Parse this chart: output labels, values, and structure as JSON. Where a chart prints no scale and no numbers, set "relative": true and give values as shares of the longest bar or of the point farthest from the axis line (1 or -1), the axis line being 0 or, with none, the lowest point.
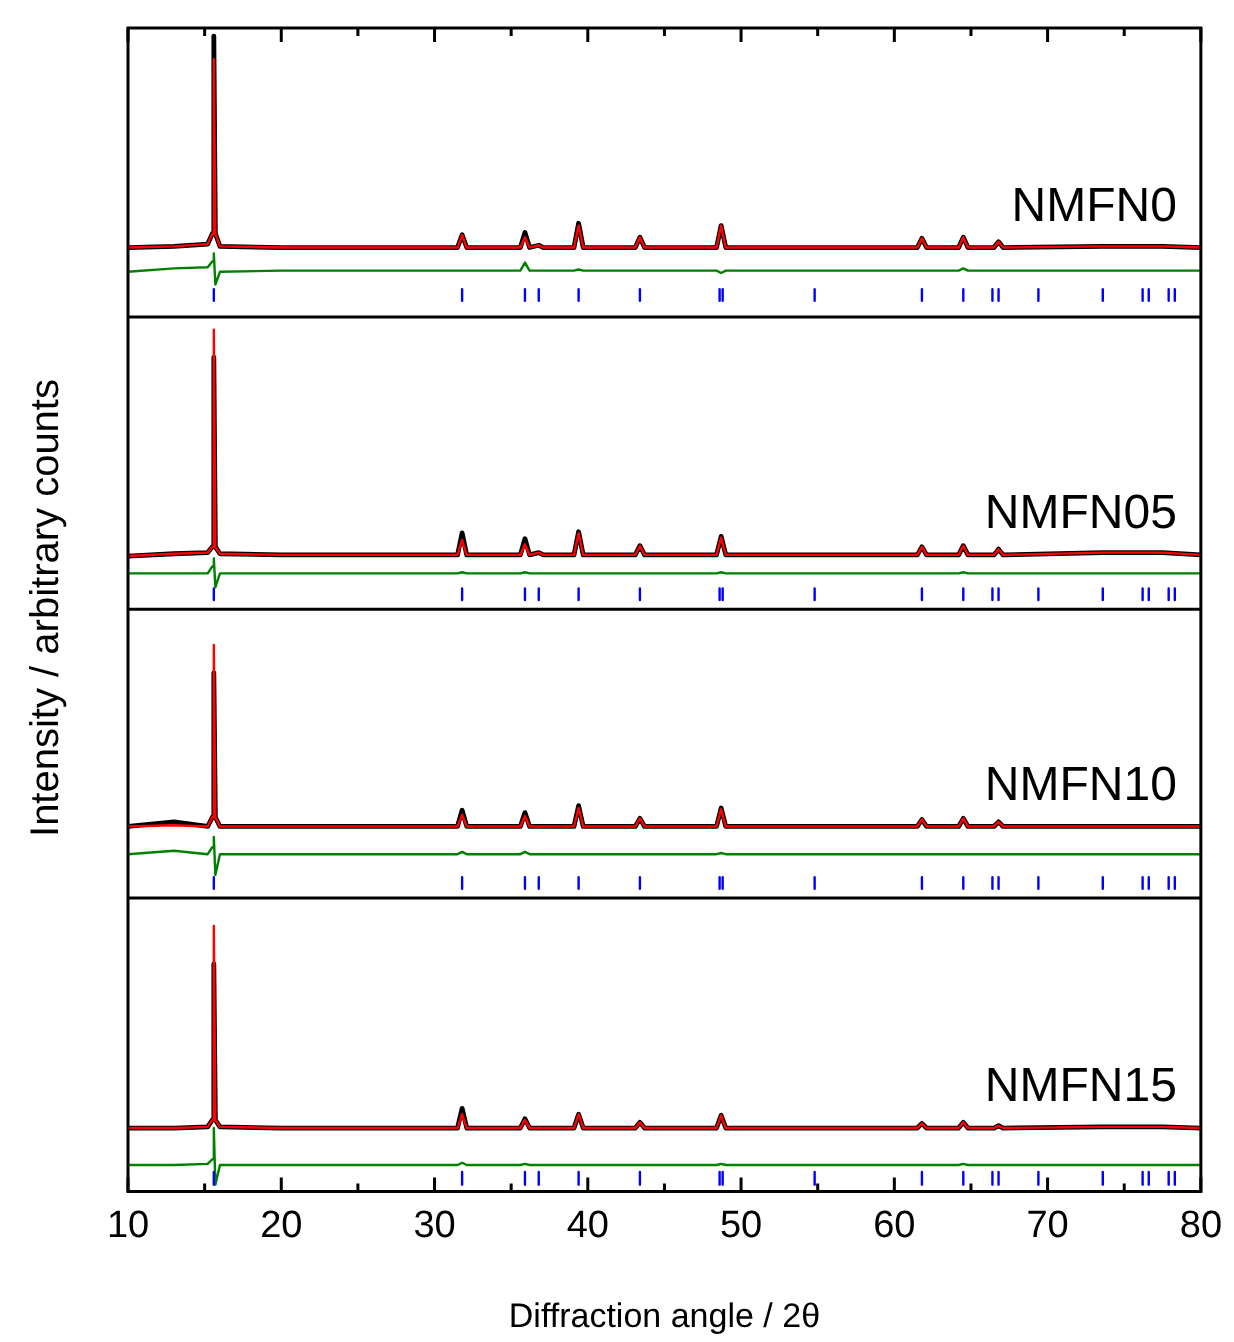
{
  "chart_data": {
    "type": "line",
    "relative": true,
    "ylabel": "Intensity / arbitrary counts",
    "xlabel": "Diffraction angle / 2θ",
    "tick_labels": "x",
    "grid": false,
    "legend": false,
    "xlim": [
      10,
      80
    ],
    "xticks": [
      10,
      {
        "value": 15,
        "label": null
      },
      20,
      {
        "value": 25,
        "label": null
      },
      30,
      {
        "value": 35,
        "label": null
      },
      40,
      {
        "value": 45,
        "label": null
      },
      50,
      {
        "value": 55,
        "label": null
      },
      60,
      {
        "value": 65,
        "label": null
      },
      70,
      {
        "value": 75,
        "label": null
      },
      80
    ],
    "ref_lines": [
      {
        "axis": "y",
        "value": 0.757,
        "color": "#000000"
      },
      {
        "axis": "y",
        "value": 0.504,
        "color": "#000000"
      },
      {
        "axis": "y",
        "value": 0.254,
        "color": "#000000"
      }
    ],
    "x": [
      10,
      13,
      15.2,
      15.5,
      15.6,
      15.7,
      16.0,
      20,
      31.5,
      31.8,
      32.1,
      35.6,
      35.9,
      36.2,
      36.8,
      37.1,
      39.1,
      39.4,
      39.7,
      43.1,
      43.4,
      43.7,
      48.4,
      48.7,
      49.0,
      61.5,
      61.8,
      62.1,
      64.2,
      64.5,
      64.8,
      66.5,
      66.8,
      67.1,
      73.6,
      77.5,
      80
    ],
    "series": [
      {
        "name": "NMFN0",
        "color": "#000000",
        "values": [
          0.817,
          0.818,
          0.82,
          0.829,
          1.0,
          0.829,
          0.818,
          0.817,
          0.817,
          0.828,
          0.817,
          0.817,
          0.83,
          0.817,
          0.819,
          0.817,
          0.817,
          0.838,
          0.817,
          0.817,
          0.826,
          0.817,
          0.817,
          0.836,
          0.817,
          0.817,
          0.825,
          0.817,
          0.817,
          0.826,
          0.817,
          0.817,
          0.822,
          0.817,
          0.818,
          0.818,
          0.817
        ]
      },
      {
        "color": "#ff0000",
        "values": [
          0.817,
          0.818,
          0.82,
          0.829,
          0.98,
          0.829,
          0.818,
          0.817,
          0.817,
          0.828,
          0.817,
          0.817,
          0.826,
          0.817,
          0.819,
          0.817,
          0.817,
          0.836,
          0.817,
          0.817,
          0.826,
          0.817,
          0.817,
          0.836,
          0.817,
          0.817,
          0.825,
          0.817,
          0.817,
          0.826,
          0.817,
          0.817,
          0.822,
          0.817,
          0.818,
          0.818,
          0.817
        ]
      },
      {
        "color": "#008000",
        "values": [
          0.796,
          0.799,
          0.8,
          0.805,
          0.812,
          0.785,
          0.796,
          0.797,
          0.797,
          0.797,
          0.797,
          0.797,
          0.804,
          0.797,
          0.797,
          0.797,
          0.797,
          0.798,
          0.797,
          0.797,
          0.797,
          0.797,
          0.797,
          0.795,
          0.797,
          0.797,
          0.797,
          0.797,
          0.797,
          0.799,
          0.797,
          0.797,
          0.797,
          0.797,
          0.797,
          0.797,
          0.797
        ]
      },
      {
        "color": "#0000ff",
        "x": [
          15.6,
          15.6,
          null,
          31.8,
          31.8,
          null,
          35.9,
          35.9,
          null,
          36.8,
          36.8,
          null,
          39.4,
          39.4,
          null,
          43.4,
          43.4,
          null,
          48.6,
          48.6,
          null,
          48.8,
          48.8,
          null,
          54.8,
          54.8,
          null,
          61.8,
          61.8,
          null,
          64.5,
          64.5,
          null,
          66.4,
          66.4,
          null,
          66.8,
          66.8,
          null,
          69.4,
          69.4,
          null,
          73.6,
          73.6,
          null,
          76.2,
          76.2,
          null,
          76.6,
          76.6,
          null,
          77.9,
          77.9,
          null,
          78.3,
          78.3,
          null
        ],
        "values": [
          0.771,
          0.781,
          null,
          0.771,
          0.781,
          null,
          0.771,
          0.781,
          null,
          0.771,
          0.781,
          null,
          0.771,
          0.781,
          null,
          0.771,
          0.781,
          null,
          0.771,
          0.781,
          null,
          0.771,
          0.781,
          null,
          0.771,
          0.781,
          null,
          0.771,
          0.781,
          null,
          0.771,
          0.781,
          null,
          0.771,
          0.781,
          null,
          0.771,
          0.781,
          null,
          0.771,
          0.781,
          null,
          0.771,
          0.781,
          null,
          0.771,
          0.781,
          null,
          0.771,
          0.781,
          null,
          0.771,
          0.781,
          null,
          0.771,
          0.781,
          null
        ]
      },
      {
        "name": "NMFN05",
        "color": "#000000",
        "values": [
          0.55,
          0.552,
          0.553,
          0.558,
          0.722,
          0.558,
          0.552,
          0.551,
          0.551,
          0.57,
          0.551,
          0.551,
          0.565,
          0.551,
          0.553,
          0.551,
          0.551,
          0.571,
          0.551,
          0.551,
          0.559,
          0.551,
          0.551,
          0.567,
          0.551,
          0.551,
          0.558,
          0.551,
          0.551,
          0.559,
          0.551,
          0.551,
          0.556,
          0.551,
          0.553,
          0.553,
          0.551
        ]
      },
      {
        "color": "#ff0000",
        "values": [
          0.55,
          0.552,
          0.553,
          0.558,
          0.746,
          0.558,
          0.552,
          0.551,
          0.551,
          0.564,
          0.551,
          0.551,
          0.56,
          0.551,
          0.553,
          0.551,
          0.551,
          0.57,
          0.551,
          0.551,
          0.559,
          0.551,
          0.551,
          0.566,
          0.551,
          0.551,
          0.558,
          0.551,
          0.551,
          0.559,
          0.551,
          0.551,
          0.556,
          0.551,
          0.553,
          0.553,
          0.551
        ]
      },
      {
        "color": "#008000",
        "values": [
          0.535,
          0.535,
          0.535,
          0.541,
          0.548,
          0.523,
          0.535,
          0.535,
          0.535,
          0.536,
          0.535,
          0.535,
          0.536,
          0.535,
          0.535,
          0.535,
          0.535,
          0.535,
          0.535,
          0.535,
          0.535,
          0.535,
          0.535,
          0.536,
          0.535,
          0.535,
          0.535,
          0.535,
          0.535,
          0.536,
          0.535,
          0.535,
          0.535,
          0.535,
          0.535,
          0.535,
          0.535
        ]
      },
      {
        "color": "#0000ff",
        "x": [
          15.6,
          15.6,
          null,
          31.8,
          31.8,
          null,
          35.9,
          35.9,
          null,
          36.8,
          36.8,
          null,
          39.4,
          39.4,
          null,
          43.4,
          43.4,
          null,
          48.6,
          48.6,
          null,
          48.8,
          48.8,
          null,
          54.8,
          54.8,
          null,
          61.8,
          61.8,
          null,
          64.5,
          64.5,
          null,
          66.4,
          66.4,
          null,
          66.8,
          66.8,
          null,
          69.4,
          69.4,
          null,
          73.6,
          73.6,
          null,
          76.2,
          76.2,
          null,
          76.6,
          76.6,
          null,
          77.9,
          77.9,
          null,
          78.3,
          78.3,
          null
        ],
        "values": [
          0.512,
          0.522,
          null,
          0.512,
          0.522,
          null,
          0.512,
          0.522,
          null,
          0.512,
          0.522,
          null,
          0.512,
          0.522,
          null,
          0.512,
          0.522,
          null,
          0.512,
          0.522,
          null,
          0.512,
          0.522,
          null,
          0.512,
          0.522,
          null,
          0.512,
          0.522,
          null,
          0.512,
          0.522,
          null,
          0.512,
          0.522,
          null,
          0.512,
          0.522,
          null,
          0.512,
          0.522,
          null,
          0.512,
          0.522,
          null,
          0.512,
          0.522,
          null,
          0.512,
          0.522,
          null,
          0.512,
          0.522,
          null,
          0.512,
          0.522,
          null
        ]
      },
      {
        "name": "NMFN10",
        "color": "#000000",
        "values": [
          0.316,
          0.32,
          0.316,
          0.324,
          0.449,
          0.324,
          0.316,
          0.316,
          0.316,
          0.33,
          0.316,
          0.316,
          0.328,
          0.316,
          0.316,
          0.316,
          0.316,
          0.334,
          0.316,
          0.316,
          0.323,
          0.316,
          0.316,
          0.332,
          0.316,
          0.316,
          0.322,
          0.316,
          0.316,
          0.323,
          0.316,
          0.316,
          0.32,
          0.316,
          0.316,
          0.316,
          0.316
        ]
      },
      {
        "color": "#ff0000",
        "values": [
          0.316,
          0.317,
          0.316,
          0.324,
          0.473,
          0.324,
          0.316,
          0.316,
          0.316,
          0.326,
          0.316,
          0.316,
          0.325,
          0.316,
          0.316,
          0.316,
          0.316,
          0.332,
          0.316,
          0.316,
          0.323,
          0.316,
          0.316,
          0.331,
          0.316,
          0.316,
          0.322,
          0.316,
          0.316,
          0.323,
          0.316,
          0.316,
          0.32,
          0.316,
          0.316,
          0.316,
          0.316
        ]
      },
      {
        "color": "#008000",
        "values": [
          0.292,
          0.295,
          0.292,
          0.298,
          0.307,
          0.274,
          0.292,
          0.292,
          0.292,
          0.294,
          0.292,
          0.292,
          0.294,
          0.292,
          0.292,
          0.292,
          0.292,
          0.292,
          0.292,
          0.292,
          0.292,
          0.292,
          0.292,
          0.293,
          0.292,
          0.292,
          0.292,
          0.292,
          0.292,
          0.292,
          0.292,
          0.292,
          0.292,
          0.292,
          0.292,
          0.292,
          0.292
        ]
      },
      {
        "color": "#0000ff",
        "x": [
          15.6,
          15.6,
          null,
          31.8,
          31.8,
          null,
          35.9,
          35.9,
          null,
          36.8,
          36.8,
          null,
          39.4,
          39.4,
          null,
          43.4,
          43.4,
          null,
          48.6,
          48.6,
          null,
          48.8,
          48.8,
          null,
          54.8,
          54.8,
          null,
          61.8,
          61.8,
          null,
          64.5,
          64.5,
          null,
          66.4,
          66.4,
          null,
          66.8,
          66.8,
          null,
          69.4,
          69.4,
          null,
          73.6,
          73.6,
          null,
          76.2,
          76.2,
          null,
          76.6,
          76.6,
          null,
          77.9,
          77.9,
          null,
          78.3,
          78.3,
          null
        ],
        "values": [
          0.262,
          0.272,
          null,
          0.262,
          0.272,
          null,
          0.262,
          0.272,
          null,
          0.262,
          0.272,
          null,
          0.262,
          0.272,
          null,
          0.262,
          0.272,
          null,
          0.262,
          0.272,
          null,
          0.262,
          0.272,
          null,
          0.262,
          0.272,
          null,
          0.262,
          0.272,
          null,
          0.262,
          0.272,
          null,
          0.262,
          0.272,
          null,
          0.262,
          0.272,
          null,
          0.262,
          0.272,
          null,
          0.262,
          0.272,
          null,
          0.262,
          0.272,
          null,
          0.262,
          0.272,
          null,
          0.262,
          0.272,
          null,
          0.262,
          0.272,
          null
        ]
      },
      {
        "name": "NMFN15",
        "color": "#000000",
        "values": [
          0.055,
          0.055,
          0.056,
          0.062,
          0.197,
          0.062,
          0.056,
          0.055,
          0.055,
          0.072,
          0.055,
          0.055,
          0.063,
          0.055,
          0.055,
          0.055,
          0.055,
          0.067,
          0.055,
          0.055,
          0.06,
          0.055,
          0.055,
          0.066,
          0.055,
          0.055,
          0.059,
          0.055,
          0.055,
          0.06,
          0.055,
          0.055,
          0.057,
          0.055,
          0.056,
          0.056,
          0.055
        ]
      },
      {
        "color": "#ff0000",
        "values": [
          0.055,
          0.055,
          0.056,
          0.062,
          0.23,
          0.062,
          0.056,
          0.055,
          0.055,
          0.067,
          0.055,
          0.055,
          0.062,
          0.055,
          0.055,
          0.055,
          0.055,
          0.067,
          0.055,
          0.055,
          0.06,
          0.055,
          0.055,
          0.066,
          0.055,
          0.055,
          0.059,
          0.055,
          0.055,
          0.06,
          0.055,
          0.055,
          0.057,
          0.055,
          0.056,
          0.056,
          0.055
        ]
      },
      {
        "color": "#008000",
        "values": [
          0.023,
          0.023,
          0.024,
          0.028,
          0.055,
          0.006,
          0.023,
          0.023,
          0.023,
          0.025,
          0.023,
          0.023,
          0.024,
          0.023,
          0.023,
          0.023,
          0.023,
          0.023,
          0.023,
          0.023,
          0.023,
          0.023,
          0.023,
          0.024,
          0.023,
          0.023,
          0.023,
          0.023,
          0.023,
          0.024,
          0.023,
          0.023,
          0.023,
          0.023,
          0.023,
          0.023,
          0.023
        ]
      },
      {
        "color": "#0000ff",
        "x": [
          15.6,
          15.6,
          null,
          31.8,
          31.8,
          null,
          35.9,
          35.9,
          null,
          36.8,
          36.8,
          null,
          39.4,
          39.4,
          null,
          43.4,
          43.4,
          null,
          48.6,
          48.6,
          null,
          48.8,
          48.8,
          null,
          54.8,
          54.8,
          null,
          61.8,
          61.8,
          null,
          64.5,
          64.5,
          null,
          66.4,
          66.4,
          null,
          66.8,
          66.8,
          null,
          69.4,
          69.4,
          null,
          73.6,
          73.6,
          null,
          76.2,
          76.2,
          null,
          76.6,
          76.6,
          null,
          77.9,
          77.9,
          null,
          78.3,
          78.3,
          null
        ],
        "values": [
          0.006,
          0.017,
          null,
          0.006,
          0.017,
          null,
          0.006,
          0.017,
          null,
          0.006,
          0.017,
          null,
          0.006,
          0.017,
          null,
          0.006,
          0.017,
          null,
          0.006,
          0.017,
          null,
          0.006,
          0.017,
          null,
          0.006,
          0.017,
          null,
          0.006,
          0.017,
          null,
          0.006,
          0.017,
          null,
          0.006,
          0.017,
          null,
          0.006,
          0.017,
          null,
          0.006,
          0.017,
          null,
          0.006,
          0.017,
          null,
          0.006,
          0.017,
          null,
          0.006,
          0.017,
          null,
          0.006,
          0.017,
          null,
          0.006,
          0.017,
          null
        ]
      }
    ]
  }
}
